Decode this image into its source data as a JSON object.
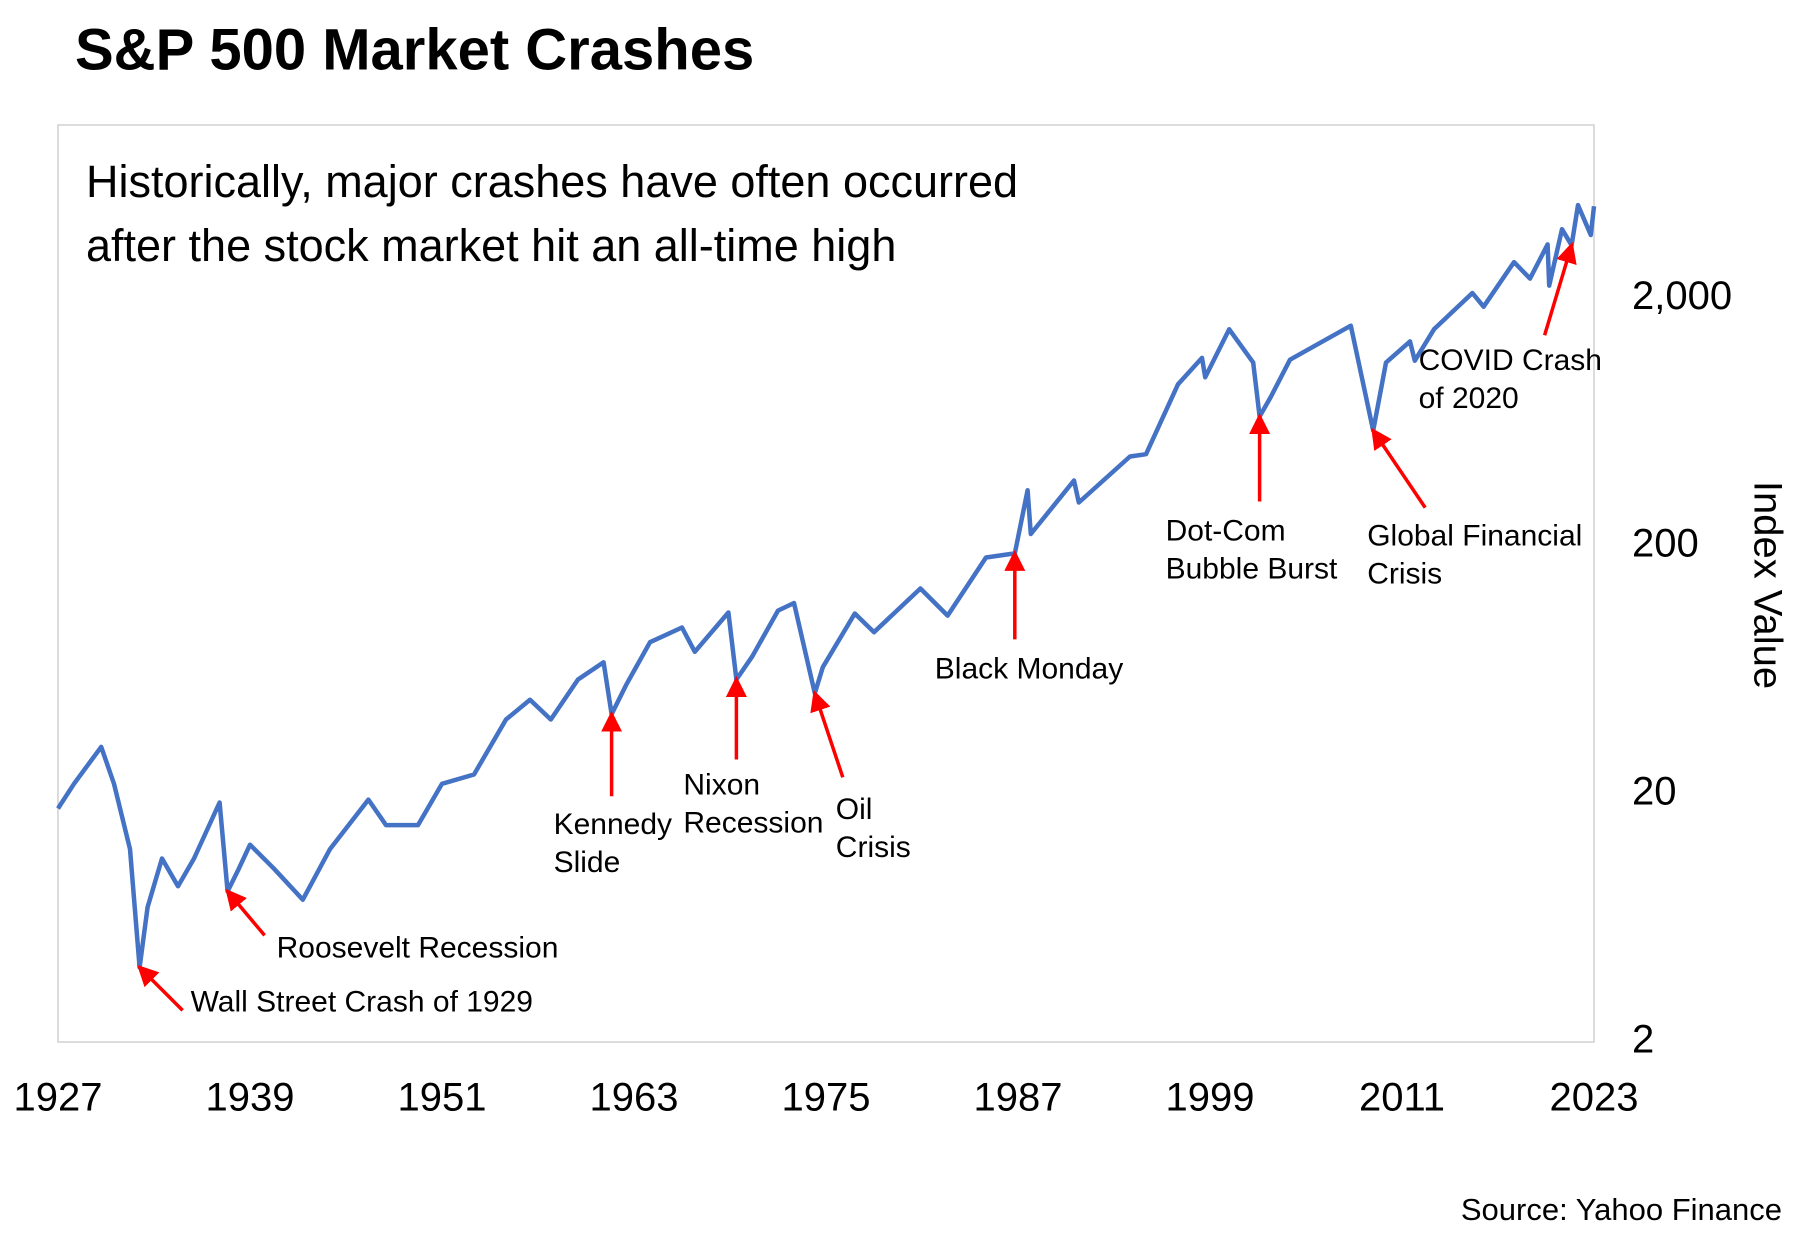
{
  "chart_data": {
    "type": "line",
    "title": "S&P 500 Market Crashes",
    "subtitle": [
      "Historically, major crashes have often occurred",
      "after the stock market hit an all-time high"
    ],
    "y_axis_label": "Index Value",
    "source": "Source: Yahoo Finance",
    "color": "#4472c4",
    "log_scale_y": true,
    "xlim": [
      1927,
      2023
    ],
    "xticks": [
      1927,
      1939,
      1951,
      1963,
      1975,
      1987,
      1999,
      2011,
      2023
    ],
    "ylim": [
      2,
      10000
    ],
    "yticks": [
      2,
      20,
      200,
      {
        "value": 2000,
        "label": "2,000"
      }
    ],
    "x": [
      1927,
      1928,
      1929.7,
      1930.5,
      1931.5,
      1932.1,
      1932.6,
      1933.5,
      1934.5,
      1935.5,
      1937.1,
      1937.6,
      1938.3,
      1939,
      1940.5,
      1942.3,
      1944,
      1946.4,
      1947.5,
      1949.5,
      1951,
      1953,
      1955,
      1956.5,
      1957.8,
      1959.5,
      1961.1,
      1961.6,
      1962.5,
      1964,
      1966,
      1966.8,
      1968.9,
      1969.4,
      1970.4,
      1972,
      1973,
      1974.3,
      1974.8,
      1976.8,
      1978,
      1980.9,
      1982.6,
      1985,
      1986.8,
      1987.6,
      1987.8,
      1990.5,
      1990.8,
      1994,
      1995,
      1997,
      1998.5,
      1998.7,
      2000.2,
      2001.7,
      2002.1,
      2002.8,
      2004,
      2007.8,
      2009.2,
      2010,
      2011.5,
      2011.8,
      2013,
      2015.4,
      2016.1,
      2018,
      2019,
      2020.1,
      2020.2,
      2021,
      2021.6,
      2022,
      2022.8,
      2023
    ],
    "values": [
      17.5,
      22,
      31,
      22,
      12,
      4.0,
      7,
      11,
      8.5,
      11,
      18.5,
      8.1,
      10,
      12.5,
      10,
      7.5,
      12,
      19,
      15,
      15,
      22,
      24,
      40,
      48,
      40,
      58,
      68,
      42,
      55,
      82,
      94,
      75,
      108,
      58,
      72,
      110,
      118,
      51,
      65,
      107,
      90,
      135,
      105,
      180,
      187,
      336,
      224,
      368,
      300,
      460,
      470,
      900,
      1150,
      960,
      1500,
      1100,
      667,
      800,
      1130,
      1550,
      585,
      1100,
      1340,
      1120,
      1500,
      2100,
      1850,
      2800,
      2400,
      3300,
      2250,
      3800,
      3272,
      4750,
      3600,
      4700
    ],
    "annotations": [
      {
        "text": [
          "Wall Street Crash of 1929"
        ],
        "x": 1932.1,
        "y": 4.0
      },
      {
        "text": [
          "Roosevelt Recession"
        ],
        "x": 1937.6,
        "y": 8.1
      },
      {
        "text": [
          "Kennedy",
          "Slide"
        ],
        "x": 1961.6,
        "y": 42
      },
      {
        "text": [
          "Nixon",
          "Recession"
        ],
        "x": 1969.4,
        "y": 58
      },
      {
        "text": [
          "Oil",
          "Crisis"
        ],
        "x": 1974.3,
        "y": 51
      },
      {
        "text": [
          "Black Monday"
        ],
        "x": 1986.8,
        "y": 187
      },
      {
        "text": [
          "Dot-Com",
          "Bubble Burst"
        ],
        "x": 2002.1,
        "y": 667
      },
      {
        "text": [
          "Global Financial",
          "Crisis"
        ],
        "x": 2009.2,
        "y": 585
      },
      {
        "text": [
          "COVID Crash",
          "of 2020"
        ],
        "x": 2021.6,
        "y": 3272
      }
    ]
  }
}
